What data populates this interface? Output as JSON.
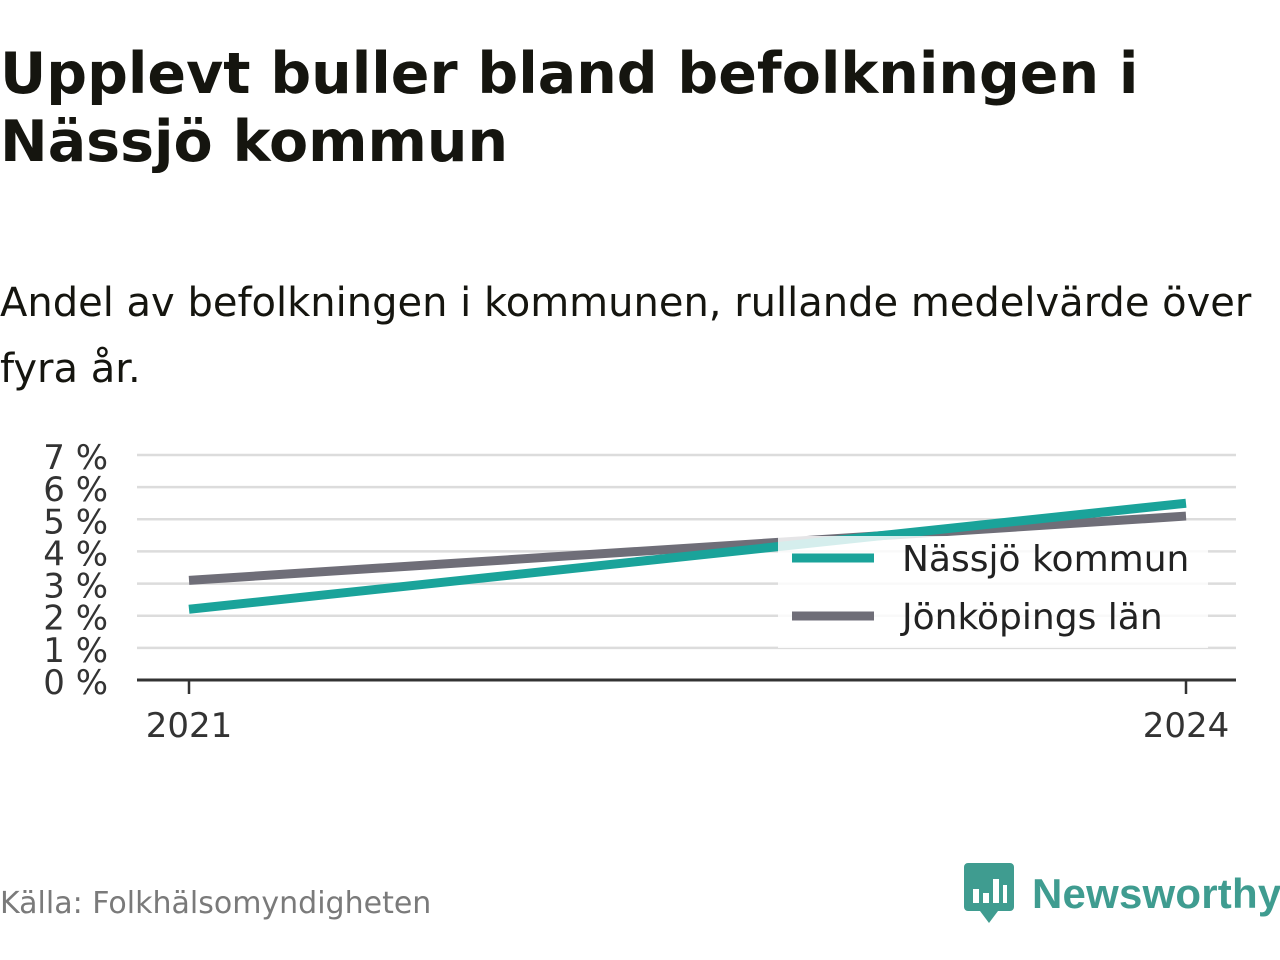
{
  "title": "Upplevt buller bland befolkningen i Nässjö kommun",
  "subtitle": "Andel av befolkningen i kommunen, rullande medelvärde över fyra år.",
  "source": "Källa: Folkhälsomyndigheten",
  "brand": {
    "name": "Newsworthy",
    "icon": "newsworthy-logo-icon",
    "color": "#3f9c90"
  },
  "chart_data": {
    "type": "line",
    "x": [
      "2021",
      "2024"
    ],
    "ylim": [
      0,
      7
    ],
    "yticks": [
      "0 %",
      "1 %",
      "2 %",
      "3 %",
      "4 %",
      "5 %",
      "6 %",
      "7 %"
    ],
    "xticks": [
      "2021",
      "2024"
    ],
    "grid": true,
    "legend_position": "right",
    "series": [
      {
        "name": "Nässjö kommun",
        "color": "#1aa39a",
        "values": [
          2.2,
          5.5
        ]
      },
      {
        "name": "Jönköpings län",
        "color": "#6f6e78",
        "values": [
          3.1,
          5.1
        ]
      }
    ]
  }
}
